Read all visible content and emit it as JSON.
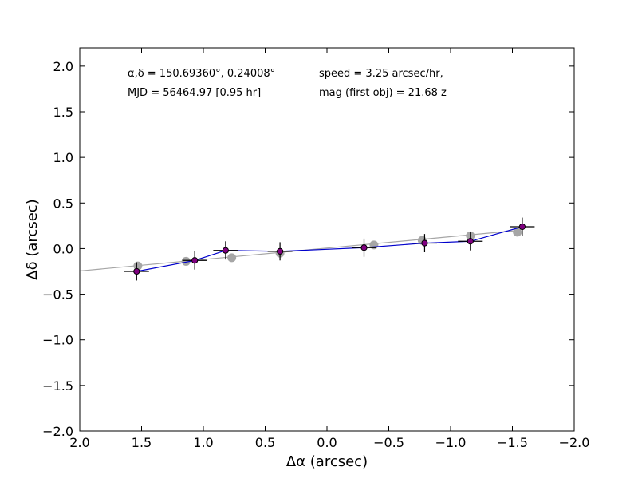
{
  "chart_data": {
    "type": "scatter",
    "xlabel": "Δα (arcsec)",
    "ylabel": "Δδ (arcsec)",
    "xlim": [
      2.0,
      -2.0
    ],
    "ylim": [
      -2.0,
      2.2
    ],
    "xticks": [
      2.0,
      1.5,
      1.0,
      0.5,
      0.0,
      -0.5,
      -1.0,
      -1.5,
      -2.0
    ],
    "xtick_labels": [
      "2.0",
      "1.5",
      "1.0",
      "0.5",
      "0.0",
      "−0.5",
      "−1.0",
      "−1.5",
      "−2.0"
    ],
    "yticks": [
      -2.0,
      -1.5,
      -1.0,
      -0.5,
      0.0,
      0.5,
      1.0,
      1.5,
      2.0
    ],
    "ytick_labels": [
      "−2.0",
      "−1.5",
      "−1.0",
      "−0.5",
      "0.0",
      "0.5",
      "1.0",
      "1.5",
      "2.0"
    ],
    "grid": false,
    "annotations": {
      "coords": "α,δ = 150.69360°, 0.24008°",
      "mjd": "MJD = 56464.97 [0.95 hr]",
      "speed": "speed = 3.25 arcsec/hr,",
      "mag": "mag (first obj) = 21.68 z"
    },
    "fit_line": {
      "color": "#a6a6a6",
      "points": [
        [
          2.0,
          -0.245
        ],
        [
          -1.55,
          0.2
        ]
      ]
    },
    "predicted_points": {
      "color": "#a6a6a6",
      "points": [
        [
          1.53,
          -0.19
        ],
        [
          1.14,
          -0.14
        ],
        [
          0.77,
          -0.1
        ],
        [
          0.38,
          -0.05
        ],
        [
          -0.38,
          0.04
        ],
        [
          -0.77,
          0.09
        ],
        [
          -1.16,
          0.14
        ],
        [
          -1.54,
          0.18
        ]
      ]
    },
    "observed_points": {
      "line_color": "#0000cc",
      "marker_color": "#800080",
      "xerr": 0.1,
      "yerr": 0.1,
      "points": [
        [
          1.54,
          -0.25
        ],
        [
          1.07,
          -0.13
        ],
        [
          0.82,
          -0.02
        ],
        [
          0.38,
          -0.03
        ],
        [
          -0.3,
          0.01
        ],
        [
          -0.79,
          0.06
        ],
        [
          -1.16,
          0.08
        ],
        [
          -1.58,
          0.24
        ]
      ]
    }
  }
}
